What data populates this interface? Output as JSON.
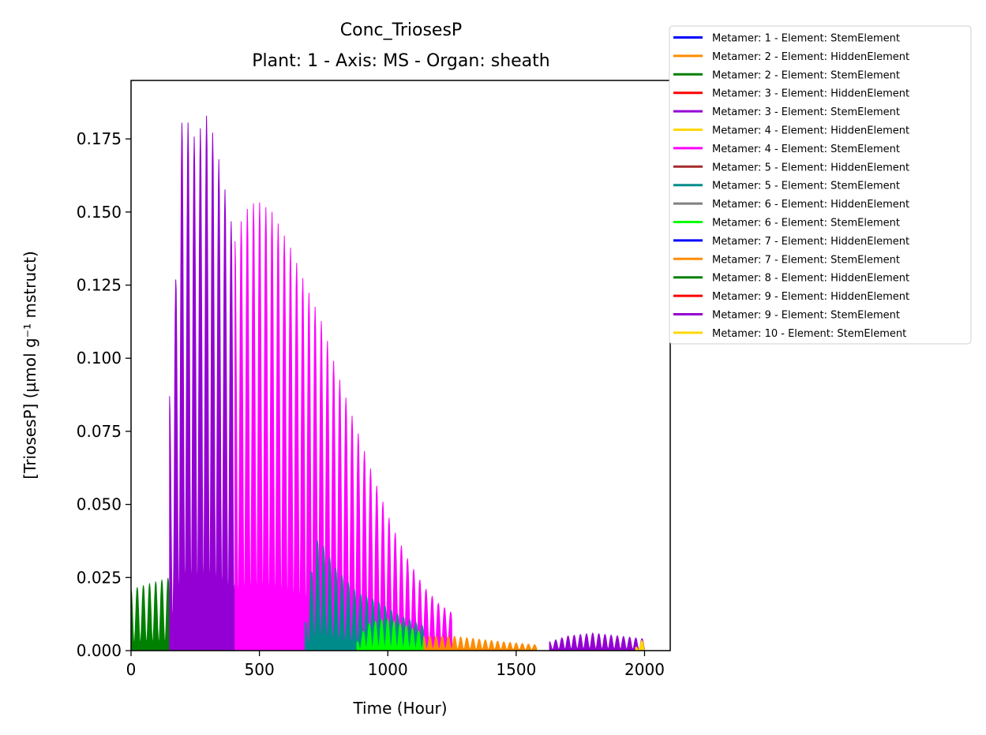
{
  "chart_data": {
    "type": "area",
    "title": "Conc_TriosesP",
    "subtitle": "Plant: 1 - Axis: MS - Organ: sheath",
    "xlabel": "Time (Hour)",
    "ylabel": "[TriosesP] (µmol g⁻¹ mstruct)",
    "xlim": [
      0,
      2100
    ],
    "ylim": [
      0,
      0.195
    ],
    "xticks": [
      0,
      500,
      1000,
      1500,
      2000
    ],
    "xtick_labels": [
      "0",
      "500",
      "1000",
      "1500",
      "2000"
    ],
    "yticks": [
      0,
      0.025,
      0.05,
      0.075,
      0.1,
      0.125,
      0.15,
      0.175
    ],
    "ytick_labels": [
      "0.000",
      "0.025",
      "0.050",
      "0.075",
      "0.100",
      "0.125",
      "0.150",
      "0.175"
    ],
    "grid": false,
    "legend_position": "outside-top-right",
    "series": [
      {
        "name": "Metamer: 1 - Element: StemElement",
        "color": "#0000ff",
        "start": 0,
        "end": 0,
        "peaks": []
      },
      {
        "name": "Metamer: 2 - Element: HiddenElement",
        "color": "#ff8c00",
        "start": 0,
        "end": 0,
        "peaks": []
      },
      {
        "name": "Metamer: 2 - Element: StemElement",
        "color": "#008000",
        "start": 0,
        "end": 150,
        "peaks": [
          [
            0,
            0.021
          ],
          [
            72,
            0.023
          ],
          [
            150,
            0.025
          ]
        ]
      },
      {
        "name": "Metamer: 3 - Element: HiddenElement",
        "color": "#ff0000",
        "start": 0,
        "end": 0,
        "peaks": []
      },
      {
        "name": "Metamer: 3 - Element: StemElement",
        "color": "#9400d3",
        "start": 150,
        "end": 405,
        "peaks": [
          [
            150,
            0.087
          ],
          [
            168,
            0.087
          ],
          [
            170,
            0.118
          ],
          [
            200,
            0.185
          ],
          [
            250,
            0.175
          ],
          [
            300,
            0.184
          ],
          [
            350,
            0.165
          ],
          [
            405,
            0.14
          ]
        ]
      },
      {
        "name": "Metamer: 4 - Element: HiddenElement",
        "color": "#ffd700",
        "start": 0,
        "end": 0,
        "peaks": []
      },
      {
        "name": "Metamer: 4 - Element: StemElement",
        "color": "#ff00ff",
        "start": 405,
        "end": 1250,
        "peaks": [
          [
            405,
            0.14
          ],
          [
            440,
            0.15
          ],
          [
            490,
            0.154
          ],
          [
            550,
            0.15
          ],
          [
            620,
            0.138
          ],
          [
            680,
            0.125
          ],
          [
            740,
            0.113
          ],
          [
            800,
            0.096
          ],
          [
            870,
            0.078
          ],
          [
            950,
            0.058
          ],
          [
            1020,
            0.042
          ],
          [
            1080,
            0.031
          ],
          [
            1140,
            0.022
          ],
          [
            1200,
            0.016
          ],
          [
            1250,
            0.013
          ]
        ]
      },
      {
        "name": "Metamer: 5 - Element: HiddenElement",
        "color": "#a52a2a",
        "start": 0,
        "end": 0,
        "peaks": []
      },
      {
        "name": "Metamer: 5 - Element: StemElement",
        "color": "#008b8b",
        "start": 678,
        "end": 1150,
        "peaks": [
          [
            678,
            0.009
          ],
          [
            710,
            0.033
          ],
          [
            730,
            0.039
          ],
          [
            800,
            0.028
          ],
          [
            880,
            0.02
          ],
          [
            960,
            0.017
          ],
          [
            1050,
            0.012
          ],
          [
            1150,
            0.008
          ]
        ]
      },
      {
        "name": "Metamer: 6 - Element: HiddenElement",
        "color": "#808080",
        "start": 0,
        "end": 0,
        "peaks": []
      },
      {
        "name": "Metamer: 6 - Element: StemElement",
        "color": "#00ff00",
        "start": 880,
        "end": 1140,
        "peaks": [
          [
            880,
            0.003
          ],
          [
            920,
            0.009
          ],
          [
            990,
            0.011
          ],
          [
            1060,
            0.009
          ],
          [
            1140,
            0.006
          ]
        ]
      },
      {
        "name": "Metamer: 7 - Element: HiddenElement",
        "color": "#0000ff",
        "start": 0,
        "end": 0,
        "peaks": []
      },
      {
        "name": "Metamer: 7 - Element: StemElement",
        "color": "#ff8c00",
        "start": 1140,
        "end": 1580,
        "peaks": [
          [
            1140,
            0.005
          ],
          [
            1250,
            0.005
          ],
          [
            1350,
            0.004
          ],
          [
            1450,
            0.003
          ],
          [
            1580,
            0.002
          ]
        ]
      },
      {
        "name": "Metamer: 8 - Element: HiddenElement",
        "color": "#008000",
        "start": 0,
        "end": 0,
        "peaks": []
      },
      {
        "name": "Metamer: 9 - Element: HiddenElement",
        "color": "#ff0000",
        "start": 0,
        "end": 0,
        "peaks": []
      },
      {
        "name": "Metamer: 9 - Element: StemElement",
        "color": "#9400d3",
        "start": 1630,
        "end": 2000,
        "peaks": [
          [
            1630,
            0.003
          ],
          [
            1700,
            0.005
          ],
          [
            1800,
            0.006
          ],
          [
            1900,
            0.005
          ],
          [
            2000,
            0.004
          ]
        ]
      },
      {
        "name": "Metamer: 10 - Element: StemElement",
        "color": "#ffd700",
        "start": 1965,
        "end": 2000,
        "peaks": [
          [
            1965,
            0.001
          ],
          [
            1980,
            0.003
          ],
          [
            2000,
            0.004
          ]
        ]
      }
    ]
  }
}
